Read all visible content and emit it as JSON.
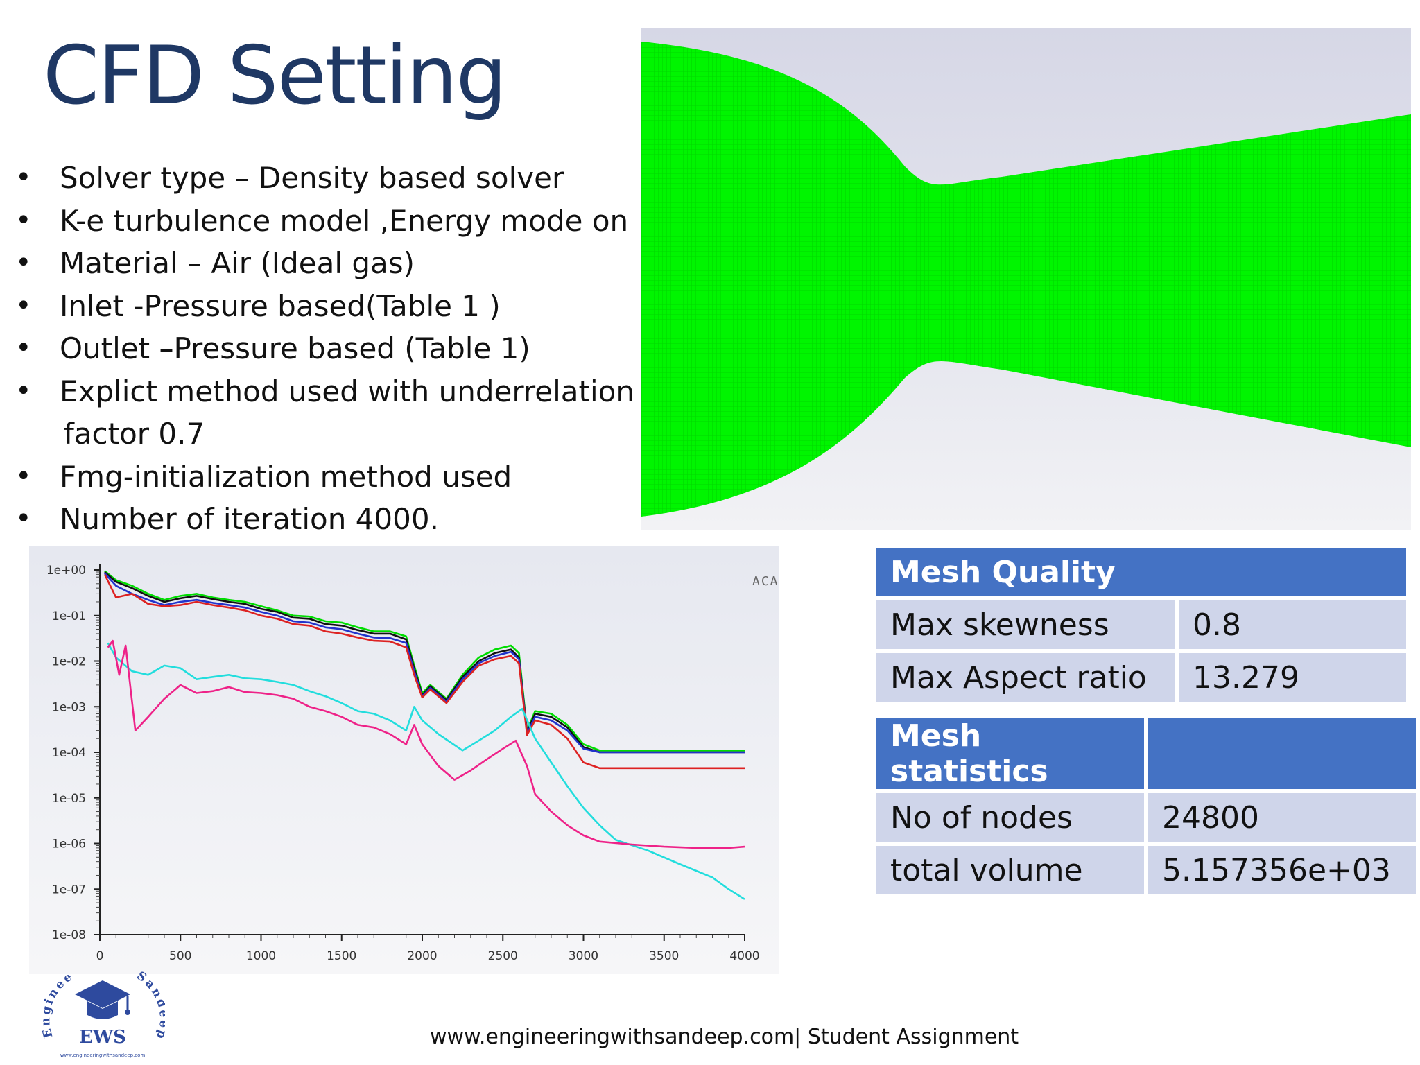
{
  "slide": {
    "title": "CFD Setting",
    "bullets": [
      "Solver type – Density based solver",
      "K-e turbulence model ,Energy mode on",
      "Material – Air (Ideal gas)",
      "Inlet  -Pressure based(Table 1 )",
      "Outlet –Pressure based (Table 1)",
      "Explict method used with underrelation",
      "Fmg-initialization method used",
      "Number of iteration 4000."
    ],
    "bullet_continuation": "factor 0.7",
    "footer": "www.engineeringwithsandeep.com| Student Assignment",
    "corner_text": "ACA"
  },
  "logo": {
    "text": "EWS",
    "arc_left": "Engineer",
    "arc_right": "Sandeep",
    "url": "www.engineeringwithsandeep.com",
    "icon": "graduation-cap-icon",
    "color": "#2e4a9e"
  },
  "mesh_quality": {
    "header": "Mesh Quality",
    "rows": [
      {
        "label": "Max skewness",
        "value": "0.8"
      },
      {
        "label": "Max Aspect ratio",
        "value": "13.279"
      }
    ]
  },
  "mesh_statistics": {
    "header": "Mesh statistics",
    "rows": [
      {
        "label": "No of nodes",
        "value": "24800"
      },
      {
        "label": "total volume",
        "value": "5.157356e+03"
      }
    ]
  },
  "mesh_image": {
    "color": "#00ff00",
    "background": "#d8d9e8"
  },
  "chart_data": {
    "type": "line",
    "yscale": "log",
    "xlim": [
      0,
      4000
    ],
    "ylim": [
      1e-08,
      1
    ],
    "x_ticks": [
      "0",
      "500",
      "1000",
      "1500",
      "2000",
      "2500",
      "3000",
      "3500",
      "4000"
    ],
    "y_ticks": [
      "1e+00",
      "1e-01",
      "1e-02",
      "1e-03",
      "1e-04",
      "1e-05",
      "1e-06",
      "1e-07",
      "1e-08"
    ],
    "series": [
      {
        "color": "#00dd00",
        "points": [
          [
            30,
            0.95
          ],
          [
            100,
            0.6
          ],
          [
            200,
            0.45
          ],
          [
            300,
            0.3
          ],
          [
            400,
            0.22
          ],
          [
            500,
            0.27
          ],
          [
            600,
            0.3
          ],
          [
            700,
            0.25
          ],
          [
            800,
            0.22
          ],
          [
            900,
            0.2
          ],
          [
            1000,
            0.16
          ],
          [
            1100,
            0.13
          ],
          [
            1200,
            0.1
          ],
          [
            1300,
            0.095
          ],
          [
            1400,
            0.075
          ],
          [
            1500,
            0.07
          ],
          [
            1600,
            0.055
          ],
          [
            1700,
            0.045
          ],
          [
            1800,
            0.045
          ],
          [
            1900,
            0.035
          ],
          [
            1950,
            0.008
          ],
          [
            2000,
            0.002
          ],
          [
            2050,
            0.003
          ],
          [
            2150,
            0.0015
          ],
          [
            2250,
            0.005
          ],
          [
            2350,
            0.012
          ],
          [
            2450,
            0.018
          ],
          [
            2550,
            0.022
          ],
          [
            2600,
            0.015
          ],
          [
            2650,
            0.0003
          ],
          [
            2700,
            0.0008
          ],
          [
            2800,
            0.0007
          ],
          [
            2900,
            0.0004
          ],
          [
            3000,
            0.00015
          ],
          [
            3100,
            0.00011
          ],
          [
            4000,
            0.00011
          ]
        ]
      },
      {
        "color": "#111111",
        "points": [
          [
            30,
            0.9
          ],
          [
            100,
            0.55
          ],
          [
            200,
            0.4
          ],
          [
            300,
            0.27
          ],
          [
            400,
            0.2
          ],
          [
            500,
            0.24
          ],
          [
            600,
            0.27
          ],
          [
            700,
            0.23
          ],
          [
            800,
            0.2
          ],
          [
            900,
            0.18
          ],
          [
            1000,
            0.14
          ],
          [
            1100,
            0.12
          ],
          [
            1200,
            0.09
          ],
          [
            1300,
            0.085
          ],
          [
            1400,
            0.065
          ],
          [
            1500,
            0.06
          ],
          [
            1600,
            0.048
          ],
          [
            1700,
            0.04
          ],
          [
            1800,
            0.04
          ],
          [
            1900,
            0.03
          ],
          [
            1950,
            0.007
          ],
          [
            2000,
            0.0018
          ],
          [
            2050,
            0.0028
          ],
          [
            2150,
            0.0014
          ],
          [
            2250,
            0.0045
          ],
          [
            2350,
            0.01
          ],
          [
            2450,
            0.015
          ],
          [
            2550,
            0.018
          ],
          [
            2600,
            0.012
          ],
          [
            2650,
            0.00028
          ],
          [
            2700,
            0.0007
          ],
          [
            2800,
            0.0006
          ],
          [
            2900,
            0.00035
          ],
          [
            3000,
            0.00013
          ],
          [
            3100,
            0.0001
          ],
          [
            4000,
            0.0001
          ]
        ]
      },
      {
        "color": "#2233cc",
        "points": [
          [
            30,
            0.85
          ],
          [
            100,
            0.45
          ],
          [
            200,
            0.3
          ],
          [
            300,
            0.22
          ],
          [
            400,
            0.17
          ],
          [
            500,
            0.2
          ],
          [
            600,
            0.22
          ],
          [
            700,
            0.19
          ],
          [
            800,
            0.17
          ],
          [
            900,
            0.15
          ],
          [
            1000,
            0.12
          ],
          [
            1100,
            0.1
          ],
          [
            1200,
            0.075
          ],
          [
            1300,
            0.07
          ],
          [
            1400,
            0.055
          ],
          [
            1500,
            0.05
          ],
          [
            1600,
            0.04
          ],
          [
            1700,
            0.033
          ],
          [
            1800,
            0.032
          ],
          [
            1900,
            0.025
          ],
          [
            1950,
            0.006
          ],
          [
            2000,
            0.0017
          ],
          [
            2050,
            0.0026
          ],
          [
            2150,
            0.0013
          ],
          [
            2250,
            0.004
          ],
          [
            2350,
            0.009
          ],
          [
            2450,
            0.013
          ],
          [
            2550,
            0.016
          ],
          [
            2600,
            0.011
          ],
          [
            2650,
            0.00026
          ],
          [
            2700,
            0.0006
          ],
          [
            2800,
            0.0005
          ],
          [
            2900,
            0.0003
          ],
          [
            3000,
            0.00012
          ],
          [
            3100,
            0.0001
          ],
          [
            4000,
            0.0001
          ]
        ]
      },
      {
        "color": "#dd2222",
        "points": [
          [
            30,
            0.8
          ],
          [
            100,
            0.25
          ],
          [
            200,
            0.3
          ],
          [
            300,
            0.18
          ],
          [
            400,
            0.16
          ],
          [
            500,
            0.17
          ],
          [
            600,
            0.2
          ],
          [
            700,
            0.17
          ],
          [
            800,
            0.15
          ],
          [
            900,
            0.13
          ],
          [
            1000,
            0.1
          ],
          [
            1100,
            0.085
          ],
          [
            1200,
            0.065
          ],
          [
            1300,
            0.06
          ],
          [
            1400,
            0.045
          ],
          [
            1500,
            0.04
          ],
          [
            1600,
            0.033
          ],
          [
            1700,
            0.028
          ],
          [
            1800,
            0.027
          ],
          [
            1900,
            0.02
          ],
          [
            1950,
            0.005
          ],
          [
            2000,
            0.0016
          ],
          [
            2050,
            0.0024
          ],
          [
            2150,
            0.0012
          ],
          [
            2250,
            0.0035
          ],
          [
            2350,
            0.008
          ],
          [
            2450,
            0.011
          ],
          [
            2550,
            0.013
          ],
          [
            2600,
            0.009
          ],
          [
            2650,
            0.00024
          ],
          [
            2700,
            0.0005
          ],
          [
            2800,
            0.0004
          ],
          [
            2900,
            0.0002
          ],
          [
            3000,
            6e-05
          ],
          [
            3100,
            4.5e-05
          ],
          [
            4000,
            4.5e-05
          ]
        ]
      },
      {
        "color": "#22dddd",
        "points": [
          [
            50,
            0.025
          ],
          [
            100,
            0.012
          ],
          [
            200,
            0.006
          ],
          [
            300,
            0.005
          ],
          [
            400,
            0.008
          ],
          [
            500,
            0.007
          ],
          [
            600,
            0.004
          ],
          [
            700,
            0.0045
          ],
          [
            800,
            0.005
          ],
          [
            900,
            0.0042
          ],
          [
            1000,
            0.004
          ],
          [
            1100,
            0.0035
          ],
          [
            1200,
            0.003
          ],
          [
            1300,
            0.0022
          ],
          [
            1400,
            0.0017
          ],
          [
            1500,
            0.0012
          ],
          [
            1600,
            0.0008
          ],
          [
            1700,
            0.0007
          ],
          [
            1800,
            0.0005
          ],
          [
            1900,
            0.0003
          ],
          [
            1950,
            0.001
          ],
          [
            2000,
            0.0005
          ],
          [
            2100,
            0.00025
          ],
          [
            2250,
            0.00011
          ],
          [
            2350,
            0.00018
          ],
          [
            2450,
            0.0003
          ],
          [
            2550,
            0.0006
          ],
          [
            2620,
            0.0009
          ],
          [
            2700,
            0.0002
          ],
          [
            2800,
            6e-05
          ],
          [
            2900,
            1.8e-05
          ],
          [
            3000,
            6e-06
          ],
          [
            3100,
            2.5e-06
          ],
          [
            3200,
            1.2e-06
          ],
          [
            3400,
            7e-07
          ],
          [
            3600,
            3.5e-07
          ],
          [
            3800,
            1.8e-07
          ],
          [
            3900,
            1e-07
          ],
          [
            4000,
            6e-08
          ]
        ]
      },
      {
        "color": "#ee2288",
        "points": [
          [
            50,
            0.02
          ],
          [
            80,
            0.028
          ],
          [
            120,
            0.005
          ],
          [
            160,
            0.022
          ],
          [
            220,
            0.0003
          ],
          [
            300,
            0.0006
          ],
          [
            400,
            0.0015
          ],
          [
            500,
            0.003
          ],
          [
            600,
            0.002
          ],
          [
            700,
            0.0022
          ],
          [
            800,
            0.0027
          ],
          [
            900,
            0.0021
          ],
          [
            1000,
            0.002
          ],
          [
            1100,
            0.0018
          ],
          [
            1200,
            0.0015
          ],
          [
            1300,
            0.001
          ],
          [
            1400,
            0.0008
          ],
          [
            1500,
            0.0006
          ],
          [
            1600,
            0.0004
          ],
          [
            1700,
            0.00035
          ],
          [
            1800,
            0.00025
          ],
          [
            1900,
            0.00015
          ],
          [
            1950,
            0.0004
          ],
          [
            2000,
            0.00015
          ],
          [
            2100,
            5e-05
          ],
          [
            2200,
            2.5e-05
          ],
          [
            2300,
            4e-05
          ],
          [
            2400,
            7e-05
          ],
          [
            2500,
            0.00012
          ],
          [
            2580,
            0.00018
          ],
          [
            2650,
            5e-05
          ],
          [
            2700,
            1.2e-05
          ],
          [
            2800,
            5e-06
          ],
          [
            2900,
            2.5e-06
          ],
          [
            3000,
            1.5e-06
          ],
          [
            3100,
            1.1e-06
          ],
          [
            3300,
            9.5e-07
          ],
          [
            3500,
            8.5e-07
          ],
          [
            3700,
            8e-07
          ],
          [
            3900,
            8e-07
          ],
          [
            4000,
            8.5e-07
          ]
        ]
      }
    ]
  }
}
